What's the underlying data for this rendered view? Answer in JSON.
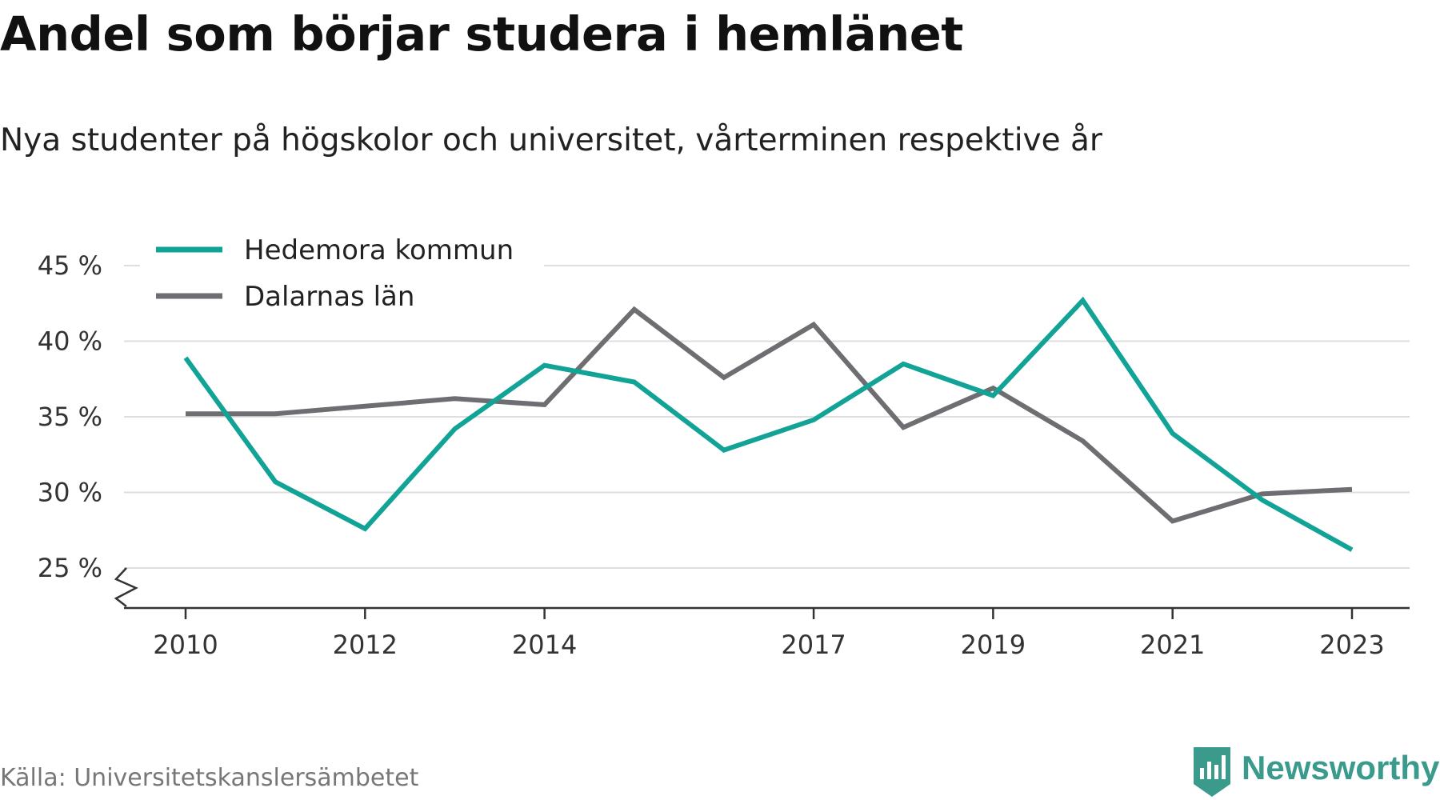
{
  "header": {
    "title": "Andel som börjar studera i hemlänet",
    "subtitle": "Nya studenter på högskolor och universitet, vårterminen respektive år"
  },
  "footer": {
    "source": "Källa: Universitetskanslersämbetet",
    "brand": "Newsworthy",
    "brand_color": "#3a9a8c"
  },
  "chart_data": {
    "type": "line",
    "x": [
      2010,
      2011,
      2012,
      2013,
      2014,
      2015,
      2016,
      2017,
      2018,
      2019,
      2020,
      2021,
      2022,
      2023
    ],
    "x_tick_labels": [
      "2010",
      "2012",
      "2014",
      "2017",
      "2019",
      "2021",
      "2023"
    ],
    "y_ticks": [
      25,
      30,
      35,
      40,
      45
    ],
    "y_tick_labels": [
      "25 %",
      "30 %",
      "35 %",
      "40 %",
      "45 %"
    ],
    "ylim": [
      22.4,
      45
    ],
    "y_axis_break": true,
    "grid": true,
    "legend_position": "top-left",
    "series": [
      {
        "name": "Hedemora kommun",
        "color": "#12a397",
        "values": [
          38.9,
          30.7,
          27.6,
          34.2,
          38.4,
          37.3,
          32.8,
          34.8,
          38.5,
          36.4,
          42.7,
          33.9,
          29.5,
          26.2
        ]
      },
      {
        "name": "Dalarnas län",
        "color": "#6e6d72",
        "values": [
          35.2,
          35.2,
          35.7,
          36.2,
          35.8,
          42.1,
          37.6,
          41.1,
          34.3,
          36.9,
          33.4,
          28.1,
          29.9,
          30.2
        ]
      }
    ]
  }
}
